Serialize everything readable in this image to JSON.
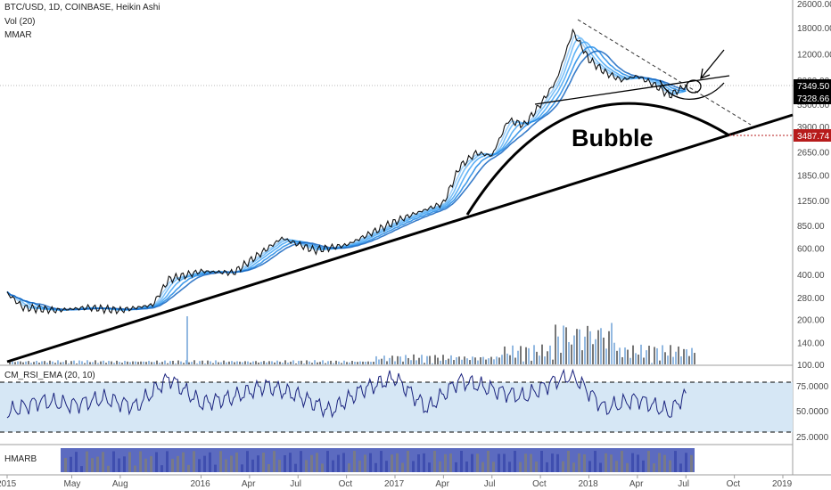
{
  "header": {
    "title": "BTC/USD, 1D, COINBASE, Heikin Ashi",
    "indicator_1": "Vol (20)",
    "indicator_2": "MMAR"
  },
  "price_axis": {
    "labels": [
      "26000.00",
      "18000.00",
      "12000.00",
      "8000.00",
      "5500.00",
      "3900.00",
      "2650.00",
      "1850.00",
      "1250.00",
      "850.00",
      "600.00",
      "400.00",
      "280.00",
      "200.00",
      "140.00",
      "100.00"
    ],
    "current_price": "7349.50",
    "second_price": "7328.66",
    "target_price": "3487.74",
    "current_price_color": "#000000",
    "target_price_color": "#b71c1c"
  },
  "annotations": {
    "bubble_label": "Bubble"
  },
  "rsi_panel": {
    "title": "CM_RSI_EMA (20, 10)",
    "labels": [
      "75.0000",
      "50.0000",
      "25.0000"
    ]
  },
  "hmarb_panel": {
    "title": "HMARB"
  },
  "time_axis": {
    "labels": [
      "2015",
      "May",
      "Aug",
      "2016",
      "Apr",
      "Jul",
      "Oct",
      "2017",
      "Apr",
      "Jul",
      "Oct",
      "2018",
      "Apr",
      "Jul",
      "Oct",
      "2019"
    ]
  },
  "chart_data": {
    "type": "line",
    "symbol": "BTC/USD",
    "timeframe": "1D",
    "exchange": "COINBASE",
    "style": "Heikin Ashi",
    "y_scale": "log",
    "ylim": [
      100,
      26000
    ],
    "series": [
      {
        "x": [
          "2015-01",
          "2015-02",
          "2015-04",
          "2015-06",
          "2015-08",
          "2015-10",
          "2015-11",
          "2016-01",
          "2016-03",
          "2016-06",
          "2016-08",
          "2016-10",
          "2016-12",
          "2017-01",
          "2017-02",
          "2017-04",
          "2017-05",
          "2017-06",
          "2017-07",
          "2017-08",
          "2017-09",
          "2017-10",
          "2017-11",
          "2017-12",
          "2018-01",
          "2018-02",
          "2018-03",
          "2018-04",
          "2018-05",
          "2018-06",
          "2018-07"
        ],
        "values": [
          300,
          240,
          230,
          240,
          230,
          250,
          370,
          420,
          410,
          700,
          580,
          630,
          800,
          900,
          1000,
          1200,
          2100,
          2600,
          2500,
          4300,
          4000,
          5500,
          8000,
          17000,
          11000,
          9000,
          8000,
          8500,
          7500,
          6300,
          7349.5
        ]
      }
    ],
    "rsi": {
      "name": "CM_RSI_EMA (20, 10)",
      "ylim": [
        0,
        100
      ],
      "bands": [
        80,
        20
      ],
      "x": [
        "2015-01",
        "2015-03",
        "2015-05",
        "2015-07",
        "2015-09",
        "2015-11",
        "2016-01",
        "2016-03",
        "2016-05",
        "2016-07",
        "2016-09",
        "2016-11",
        "2017-01",
        "2017-03",
        "2017-05",
        "2017-07",
        "2017-09",
        "2017-11",
        "2017-12",
        "2018-02",
        "2018-04",
        "2018-06",
        "2018-07"
      ],
      "values": [
        40,
        55,
        50,
        58,
        48,
        85,
        52,
        60,
        75,
        62,
        42,
        70,
        85,
        45,
        82,
        70,
        60,
        82,
        88,
        45,
        58,
        40,
        65
      ]
    }
  }
}
